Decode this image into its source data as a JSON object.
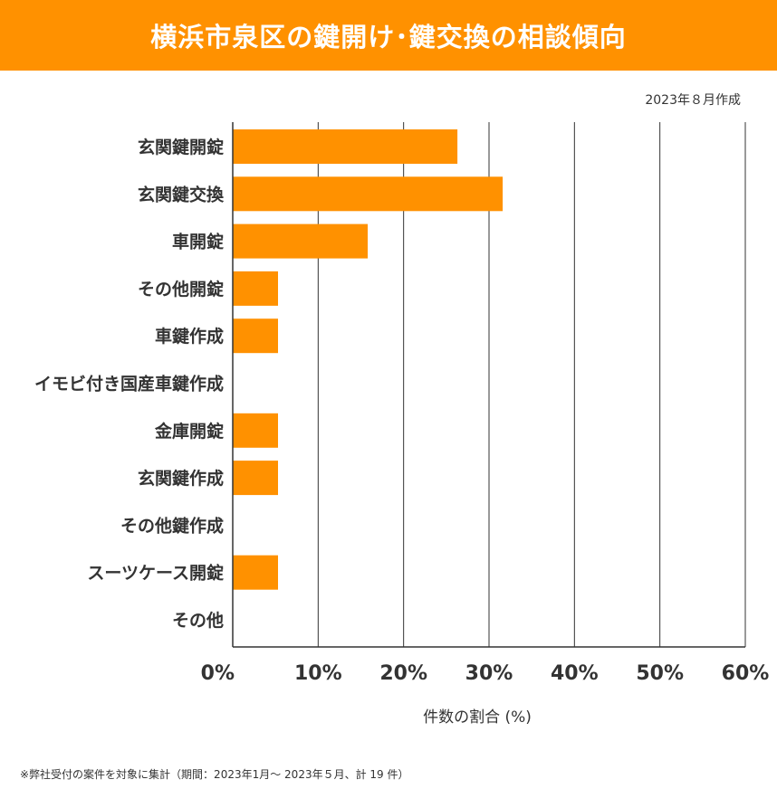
{
  "header": {
    "title": "横浜市泉区の鍵開け･鍵交換の相談傾向"
  },
  "date_note": "2023年８月作成",
  "footnote": "※弊社受付の案件を対象に集計（期間：2023年1月～ 2023年５月、計 19 件）",
  "colors": {
    "accent": "#ff9100",
    "bar": "#ff9100",
    "grid": "#333333",
    "text": "#333333"
  },
  "chart_data": {
    "type": "bar",
    "orientation": "horizontal",
    "title": "横浜市泉区の鍵開け･鍵交換の相談傾向",
    "xlabel": "件数の割合 (%)",
    "ylabel": "",
    "xlim": [
      0,
      60
    ],
    "xticks": [
      "0%",
      "10%",
      "20%",
      "30%",
      "40%",
      "50%",
      "60%"
    ],
    "xtick_values": [
      0,
      10,
      20,
      30,
      40,
      50,
      60
    ],
    "grid": true,
    "categories": [
      "玄関鍵開錠",
      "玄関鍵交換",
      "車開錠",
      "その他開錠",
      "車鍵作成",
      "イモビ付き国産車鍵作成",
      "金庫開錠",
      "玄関鍵作成",
      "その他鍵作成",
      "スーツケース開錠",
      "その他"
    ],
    "values": [
      26.3,
      31.6,
      15.8,
      5.3,
      5.3,
      0,
      5.3,
      5.3,
      0,
      5.3,
      0
    ]
  }
}
